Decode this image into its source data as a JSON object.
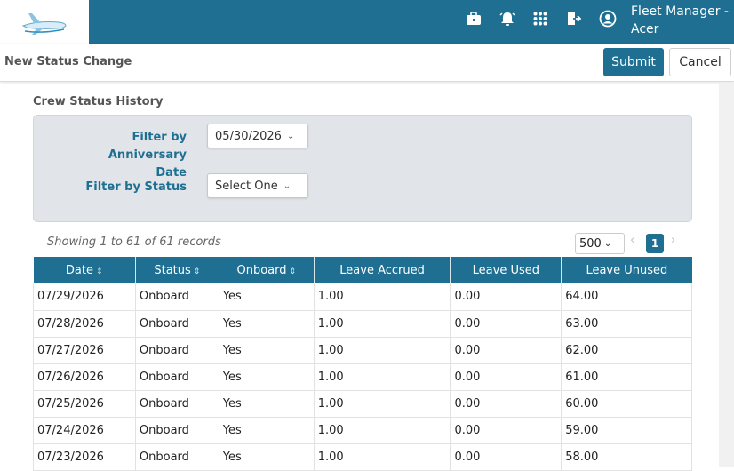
{
  "header": {
    "user_line1": "Fleet Manager -",
    "user_line2": "Acer",
    "icons": [
      "suitcase-icon",
      "alarm-bell-icon",
      "apps-grid-icon",
      "logout-icon",
      "user-circle-icon"
    ]
  },
  "toolbar": {
    "title": "New Status Change",
    "submit_label": "Submit",
    "cancel_label": "Cancel"
  },
  "section": {
    "title": "Crew Status History"
  },
  "filters": {
    "anniversary_label_line1": "Filter by Anniversary",
    "anniversary_label_line2": "Date",
    "anniversary_value": "05/30/2026",
    "status_label": "Filter by Status",
    "status_value": "Select One"
  },
  "records": {
    "info": "Showing 1 to 61 of 61 records",
    "page_size": "500",
    "current_page": "1"
  },
  "table": {
    "columns": [
      "Date",
      "Status",
      "Onboard",
      "Leave Accrued",
      "Leave Used",
      "Leave Unused"
    ],
    "rows": [
      [
        "07/29/2026",
        "Onboard",
        "Yes",
        "1.00",
        "0.00",
        "64.00"
      ],
      [
        "07/28/2026",
        "Onboard",
        "Yes",
        "1.00",
        "0.00",
        "63.00"
      ],
      [
        "07/27/2026",
        "Onboard",
        "Yes",
        "1.00",
        "0.00",
        "62.00"
      ],
      [
        "07/26/2026",
        "Onboard",
        "Yes",
        "1.00",
        "0.00",
        "61.00"
      ],
      [
        "07/25/2026",
        "Onboard",
        "Yes",
        "1.00",
        "0.00",
        "60.00"
      ],
      [
        "07/24/2026",
        "Onboard",
        "Yes",
        "1.00",
        "0.00",
        "59.00"
      ],
      [
        "07/23/2026",
        "Onboard",
        "Yes",
        "1.00",
        "0.00",
        "58.00"
      ]
    ]
  },
  "colors": {
    "brand": "#1e6f91",
    "panel": "#e1e5e9"
  }
}
